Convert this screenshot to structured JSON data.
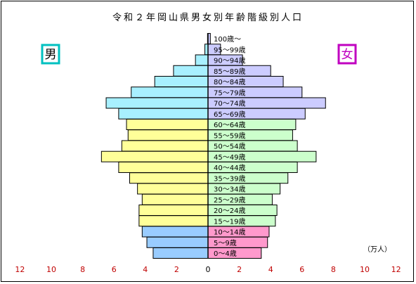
{
  "chart_data": {
    "type": "bar",
    "title": "令和２年岡山県男女別年齢階級別人口",
    "unit_label": "（万人）",
    "male_label": "男",
    "female_label": "女",
    "colors": {
      "male_label": "#00c0c0",
      "female_label": "#c000c0",
      "male_old": "#a8f0ff",
      "male_working": "#ffff99",
      "male_young": "#99ccff",
      "female_old": "#ccccff",
      "female_working": "#ccffcc",
      "female_young": "#ff99cc",
      "axis_ticks": "#c00000"
    },
    "xlim": [
      -12,
      12
    ],
    "x_ticks": [
      "12",
      "10",
      "8",
      "6",
      "4",
      "2",
      "0",
      "2",
      "4",
      "6",
      "8",
      "10",
      "12"
    ],
    "categories": [
      "100歳～",
      "95～99歳",
      "90～94歳",
      "85～89歳",
      "80～84歳",
      "75～79歳",
      "70～74歳",
      "65～69歳",
      "60～64歳",
      "55～59歳",
      "50～54歳",
      "45～49歳",
      "40～44歳",
      "35～39歳",
      "30～34歳",
      "25～29歳",
      "20～24歳",
      "15～19歳",
      "10～14歳",
      "5～9歳",
      "0～4歳"
    ],
    "series": [
      {
        "name": "男",
        "values": [
          0.03,
          0.2,
          0.8,
          2.2,
          3.4,
          4.9,
          6.5,
          5.7,
          5.2,
          5.1,
          5.5,
          6.8,
          5.7,
          5.0,
          4.5,
          4.2,
          4.4,
          4.4,
          4.2,
          3.9,
          3.5
        ]
      },
      {
        "name": "女",
        "values": [
          0.15,
          0.8,
          2.2,
          4.0,
          4.8,
          6.0,
          7.5,
          6.2,
          5.6,
          5.4,
          5.7,
          6.9,
          5.7,
          5.1,
          4.6,
          4.1,
          4.4,
          4.3,
          3.9,
          3.8,
          3.4
        ]
      }
    ]
  }
}
